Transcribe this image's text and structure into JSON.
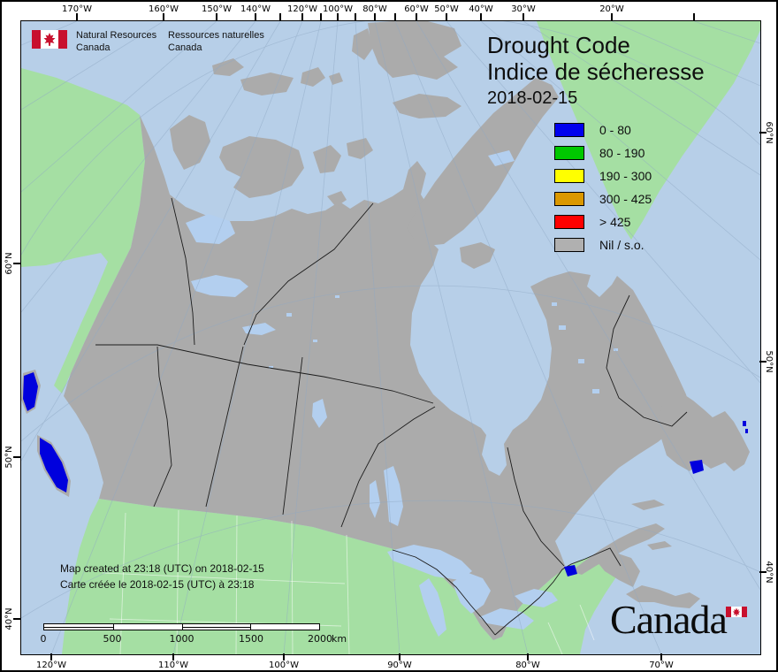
{
  "logo": {
    "en_line1": "Natural Resources",
    "en_line2": "Canada",
    "fr_line1": "Ressources naturelles",
    "fr_line2": "Canada"
  },
  "title": {
    "line1": "Drought Code",
    "line2": "Indice de sécheresse",
    "date": "2018-02-15"
  },
  "legend": {
    "items": [
      {
        "label": "0 - 80",
        "color": "#0000EE"
      },
      {
        "label": "80 - 190",
        "color": "#00C800"
      },
      {
        "label": "190 - 300",
        "color": "#FFFF00"
      },
      {
        "label": "300 - 425",
        "color": "#DB9800"
      },
      {
        "label": "> 425",
        "color": "#FF0000"
      },
      {
        "label": "Nil / s.o.",
        "color": "#B0B0B0"
      }
    ]
  },
  "footnote": {
    "line1": "Map created at 23:18 (UTC) on 2018-02-15",
    "line2": "Carte créée le 2018-02-15 (UTC) à 23:18"
  },
  "scalebar": {
    "ticks": [
      "0",
      "500",
      "1000",
      "1500",
      "2000"
    ],
    "unit": "km"
  },
  "wordmark": {
    "text": "Canada"
  },
  "frame": {
    "top_labels": [
      "170°W",
      "160°W",
      "150°W",
      "140°W",
      "120°W",
      "100°W",
      "80°W",
      "60°W",
      "50°W",
      "40°W",
      "30°W",
      "20°W"
    ],
    "bottom_labels": [
      "120°W",
      "110°W",
      "100°W",
      "90°W",
      "80°W",
      "70°W"
    ],
    "left_labels": [
      "60°N",
      "50°N",
      "40°N"
    ],
    "right_labels": [
      "60°N",
      "50°N",
      "40°N"
    ]
  },
  "colors": {
    "ocean": "#B7CFE8",
    "land": "#A5DFA3",
    "nil": "#ABABAB",
    "lake": "#B3CFEF",
    "drought": "#0000DD",
    "grat": "#8FA8C4",
    "flag_red": "#C8102E"
  }
}
